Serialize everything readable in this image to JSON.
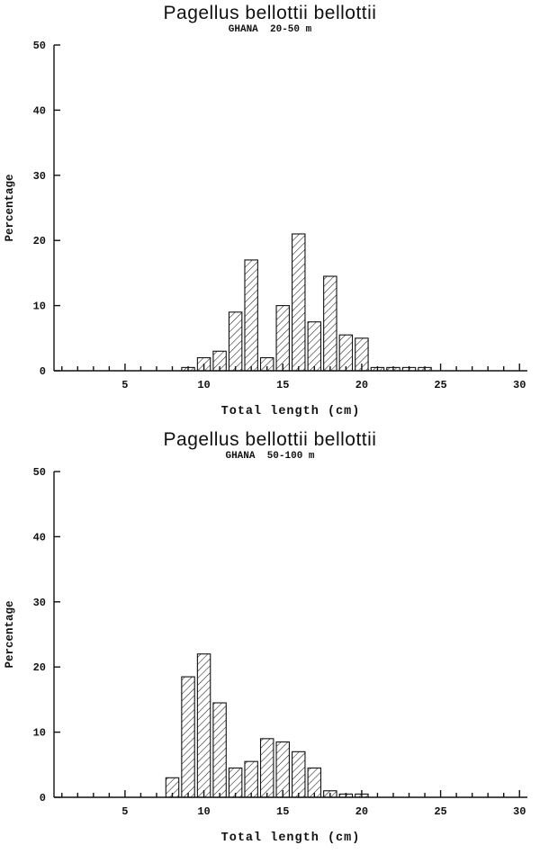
{
  "accent_color": "#111111",
  "background_color": "#ffffff",
  "chart_data": [
    {
      "type": "bar",
      "title": "Pagellus bellottii bellottii",
      "subtitle": "GHANA  20-50 m",
      "xlabel": "Total length (cm)",
      "ylabel": "Percentage",
      "xlim": [
        0.5,
        30.5
      ],
      "ylim": [
        0,
        50
      ],
      "x_ticks": [
        5,
        10,
        15,
        20,
        25,
        30
      ],
      "y_ticks": [
        0,
        10,
        20,
        30,
        40,
        50
      ],
      "minor_x_tick_step": 1,
      "grid": false,
      "legend": "none",
      "bar_style": "diagonal-hatch",
      "bar_width": 0.82,
      "x": [
        9,
        10,
        11,
        12,
        13,
        14,
        15,
        16,
        17,
        18,
        19,
        20,
        21,
        22,
        23,
        24
      ],
      "values": [
        0.5,
        2,
        3,
        9,
        17,
        2,
        10,
        21,
        7.5,
        14.5,
        5.5,
        5,
        0.5,
        0.5,
        0.5,
        0.5
      ]
    },
    {
      "type": "bar",
      "title": "Pagellus bellottii bellottii",
      "subtitle": "GHANA  50-100 m",
      "xlabel": "Total length (cm)",
      "ylabel": "Percentage",
      "xlim": [
        0.5,
        30.5
      ],
      "ylim": [
        0,
        50
      ],
      "x_ticks": [
        5,
        10,
        15,
        20,
        25,
        30
      ],
      "y_ticks": [
        0,
        10,
        20,
        30,
        40,
        50
      ],
      "minor_x_tick_step": 1,
      "grid": false,
      "legend": "none",
      "bar_style": "diagonal-hatch",
      "bar_width": 0.82,
      "x": [
        8,
        9,
        10,
        11,
        12,
        13,
        14,
        15,
        16,
        17,
        18,
        19,
        20
      ],
      "values": [
        3,
        18.5,
        22,
        14.5,
        4.5,
        5.5,
        9,
        8.5,
        7,
        4.5,
        1,
        0.5,
        0.5
      ]
    }
  ]
}
